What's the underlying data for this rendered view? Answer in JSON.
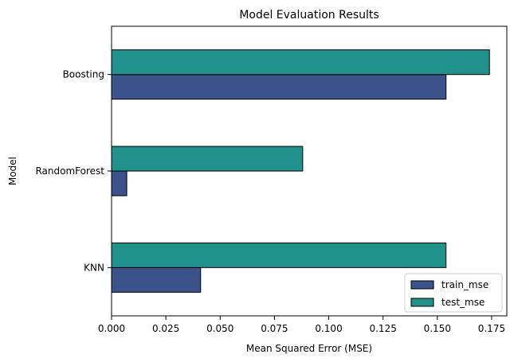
{
  "chart_data": {
    "type": "bar",
    "orientation": "horizontal",
    "title": "Model Evaluation Results",
    "xlabel": "Mean Squared Error (MSE)",
    "ylabel": "Model",
    "categories": [
      "KNN",
      "RandomForest",
      "Boosting"
    ],
    "series": [
      {
        "name": "train_mse",
        "color": "#3b528b",
        "values": [
          0.041,
          0.007,
          0.154
        ]
      },
      {
        "name": "test_mse",
        "color": "#21918c",
        "values": [
          0.154,
          0.088,
          0.174
        ]
      }
    ],
    "xlim": [
      0,
      0.182
    ],
    "xticks": [
      0.0,
      0.025,
      0.05,
      0.075,
      0.1,
      0.125,
      0.15,
      0.175
    ],
    "xtick_labels": [
      "0.000",
      "0.025",
      "0.050",
      "0.075",
      "0.100",
      "0.125",
      "0.150",
      "0.175"
    ],
    "grid": false,
    "legend_position": "lower-right"
  }
}
